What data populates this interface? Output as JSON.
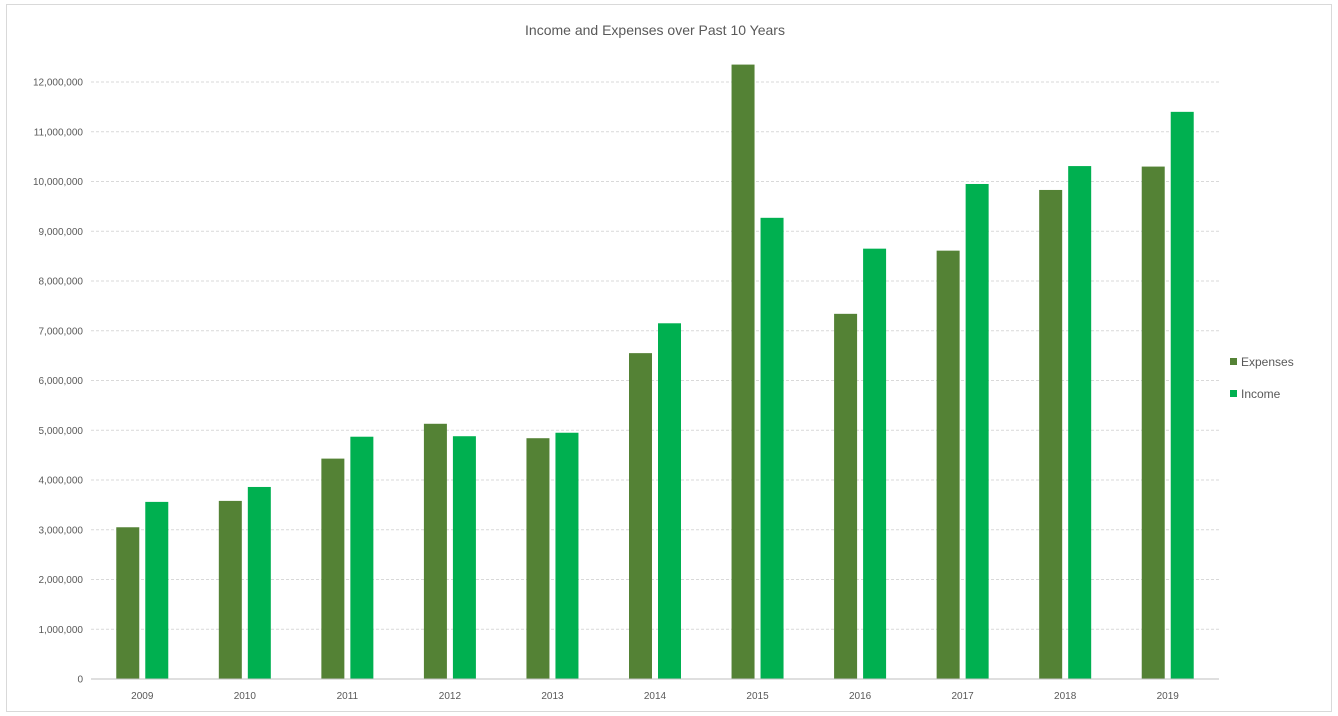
{
  "chart_data": {
    "type": "bar",
    "title": "Income and Expenses over Past 10 Years",
    "xlabel": "",
    "ylabel": "",
    "categories": [
      "2009",
      "2010",
      "2011",
      "2012",
      "2013",
      "2014",
      "2015",
      "2016",
      "2017",
      "2018",
      "2019"
    ],
    "series": [
      {
        "name": "Expenses",
        "color": "#548235",
        "values": [
          3050000,
          3580000,
          4430000,
          5130000,
          4840000,
          6550000,
          12350000,
          7340000,
          8610000,
          9830000,
          10300000
        ]
      },
      {
        "name": "Income",
        "color": "#00B050",
        "values": [
          3560000,
          3860000,
          4870000,
          4880000,
          4950000,
          7150000,
          9270000,
          8650000,
          9950000,
          10310000,
          11400000
        ]
      }
    ],
    "ylim": [
      0,
      12000000
    ],
    "yticks": [
      0,
      1000000,
      2000000,
      3000000,
      4000000,
      5000000,
      6000000,
      7000000,
      8000000,
      9000000,
      10000000,
      11000000,
      12000000
    ],
    "ytick_labels": [
      "0",
      "1,000,000",
      "2,000,000",
      "3,000,000",
      "4,000,000",
      "5,000,000",
      "6,000,000",
      "7,000,000",
      "8,000,000",
      "9,000,000",
      "10,000,000",
      "11,000,000",
      "12,000,000"
    ],
    "grid": true,
    "legend_position": "right"
  }
}
